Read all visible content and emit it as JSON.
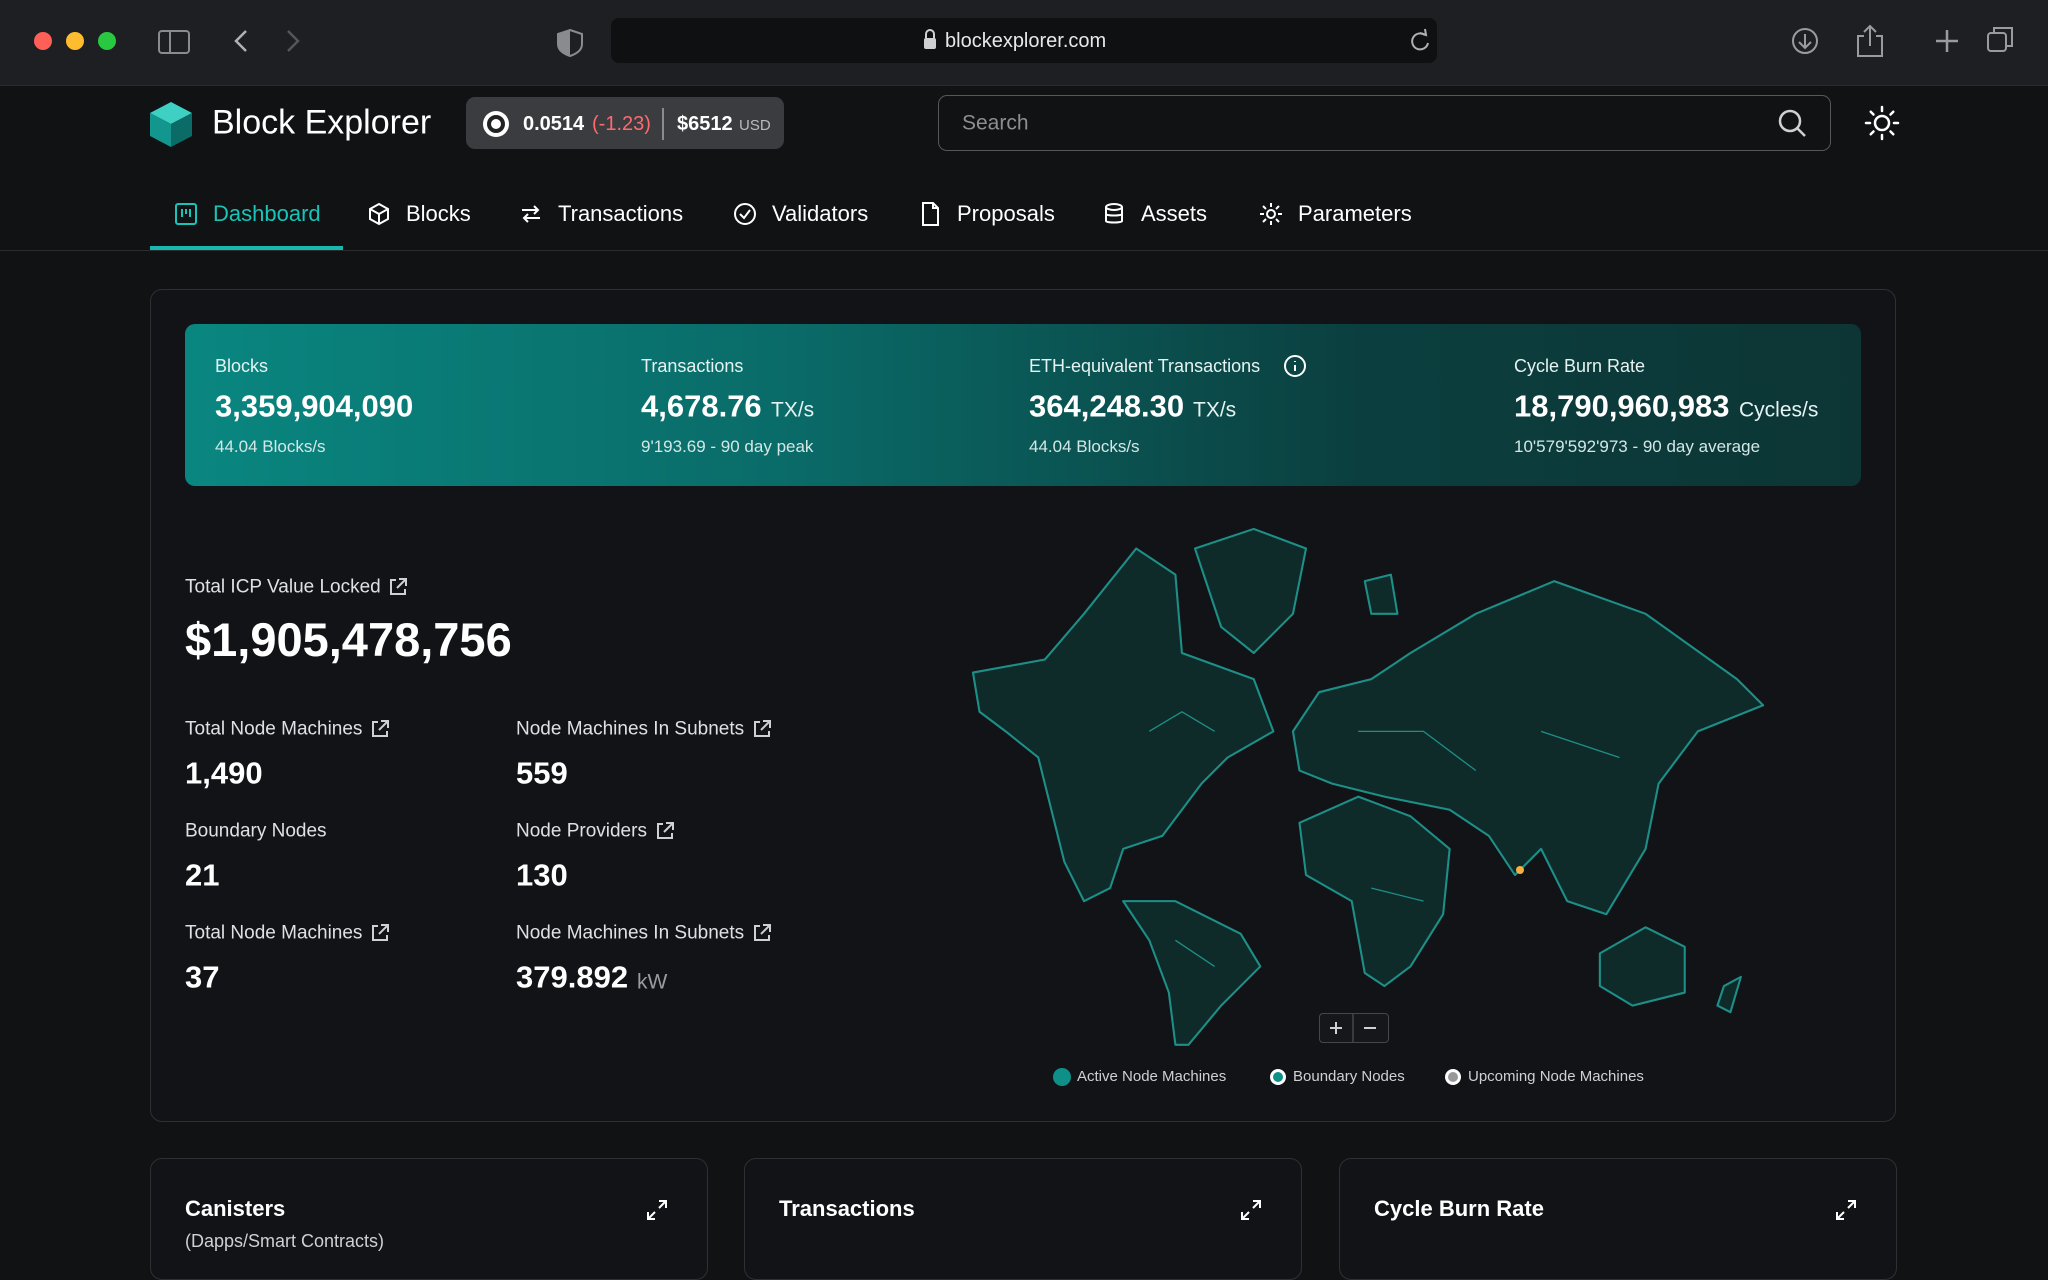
{
  "browser": {
    "url": "blockexplorer.com"
  },
  "header": {
    "brand": "Block Explorer",
    "price": "0.0514",
    "change": "(-1.23)",
    "usd_price": "$6512",
    "usd": "USD",
    "search_placeholder": "Search"
  },
  "nav": [
    "Dashboard",
    "Blocks",
    "Transactions",
    "Validators",
    "Proposals",
    "Assets",
    "Parameters"
  ],
  "stats": [
    {
      "label": "Blocks",
      "value": "3,359,904,090",
      "unit": null,
      "sub": "44.04 Blocks/s"
    },
    {
      "label": "Transactions",
      "value": "4,678.76",
      "unit": "TX/s",
      "sub": "9'193.69 - 90 day peak"
    },
    {
      "label": "ETH-equivalent Transactions",
      "value": "364,248.30",
      "unit": "TX/s",
      "sub": "44.04 Blocks/s"
    },
    {
      "label": "Cycle Burn Rate",
      "value": "18,790,960,983",
      "unit": "Cycles/s",
      "sub": "10'579'592'973 - 90 day average"
    }
  ],
  "tvl": {
    "label": "Total ICP Value Locked",
    "value": "$1,905,478,756"
  },
  "metrics": [
    {
      "label": "Total Node  Machines",
      "value": "1,490",
      "unit": null,
      "link": true
    },
    {
      "label": "Node Machines In Subnets",
      "value": "559",
      "unit": null,
      "link": true
    },
    {
      "label": "Boundary Nodes",
      "value": "21",
      "unit": null,
      "link": false
    },
    {
      "label": "Node Providers",
      "value": "130",
      "unit": null,
      "link": true
    },
    {
      "label": "Total Node  Machines",
      "value": "37",
      "unit": null,
      "link": true
    },
    {
      "label": "Node Machines In Subnets",
      "value": "379.892",
      "unit": "kW",
      "link": true
    }
  ],
  "legend": [
    "Active Node Machines",
    "Boundary Nodes",
    "Upcoming Node Machines"
  ],
  "cards": [
    {
      "title": "Canisters",
      "subtitle": "(Dapps/Smart Contracts)"
    },
    {
      "title": "Transactions",
      "subtitle": null
    },
    {
      "title": "Cycle Burn Rate",
      "subtitle": null
    }
  ]
}
